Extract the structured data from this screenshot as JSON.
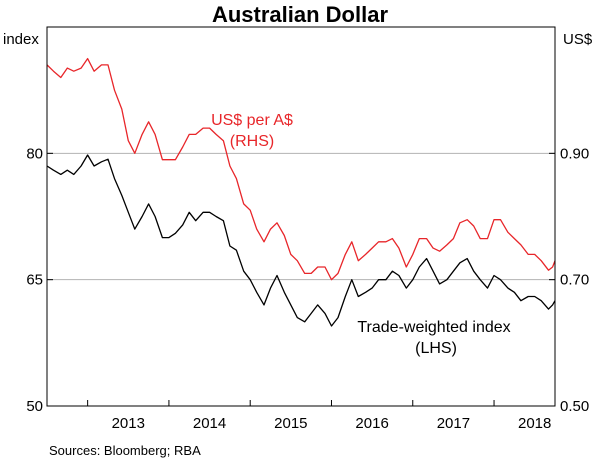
{
  "chart_data": {
    "type": "line",
    "title": "Australian Dollar",
    "left_axis": {
      "unit": "index",
      "ticks": [
        50,
        65,
        80
      ],
      "range": [
        50,
        95
      ]
    },
    "right_axis": {
      "unit": "US$",
      "ticks": [
        "0.50",
        "0.70",
        "0.90"
      ],
      "tick_values": [
        0.5,
        0.7,
        0.9
      ],
      "range": [
        0.5,
        1.1
      ]
    },
    "x_axis": {
      "ticks": [
        "2013",
        "2014",
        "2015",
        "2016",
        "2017",
        "2018"
      ],
      "range": [
        2012.5,
        2018.75
      ]
    },
    "gridlines": [
      65,
      80
    ],
    "series": [
      {
        "name": "US$ per A$",
        "axis_note": "(RHS)",
        "axis": "right",
        "color": "#e8262a",
        "points": [
          [
            2012.5,
            1.04
          ],
          [
            2012.58,
            1.03
          ],
          [
            2012.67,
            1.02
          ],
          [
            2012.75,
            1.035
          ],
          [
            2012.83,
            1.03
          ],
          [
            2012.92,
            1.035
          ],
          [
            2013.0,
            1.05
          ],
          [
            2013.08,
            1.03
          ],
          [
            2013.17,
            1.04
          ],
          [
            2013.25,
            1.04
          ],
          [
            2013.33,
            1.0
          ],
          [
            2013.42,
            0.97
          ],
          [
            2013.5,
            0.92
          ],
          [
            2013.58,
            0.9
          ],
          [
            2013.67,
            0.93
          ],
          [
            2013.75,
            0.95
          ],
          [
            2013.83,
            0.93
          ],
          [
            2013.92,
            0.89
          ],
          [
            2014.0,
            0.89
          ],
          [
            2014.08,
            0.89
          ],
          [
            2014.17,
            0.91
          ],
          [
            2014.25,
            0.93
          ],
          [
            2014.33,
            0.93
          ],
          [
            2014.42,
            0.94
          ],
          [
            2014.5,
            0.94
          ],
          [
            2014.58,
            0.93
          ],
          [
            2014.67,
            0.92
          ],
          [
            2014.75,
            0.88
          ],
          [
            2014.83,
            0.86
          ],
          [
            2014.92,
            0.82
          ],
          [
            2015.0,
            0.81
          ],
          [
            2015.08,
            0.78
          ],
          [
            2015.17,
            0.76
          ],
          [
            2015.25,
            0.78
          ],
          [
            2015.33,
            0.79
          ],
          [
            2015.42,
            0.77
          ],
          [
            2015.5,
            0.74
          ],
          [
            2015.58,
            0.73
          ],
          [
            2015.67,
            0.71
          ],
          [
            2015.75,
            0.71
          ],
          [
            2015.83,
            0.72
          ],
          [
            2015.92,
            0.72
          ],
          [
            2016.0,
            0.7
          ],
          [
            2016.08,
            0.71
          ],
          [
            2016.17,
            0.74
          ],
          [
            2016.25,
            0.76
          ],
          [
            2016.33,
            0.73
          ],
          [
            2016.42,
            0.74
          ],
          [
            2016.5,
            0.75
          ],
          [
            2016.58,
            0.76
          ],
          [
            2016.67,
            0.76
          ],
          [
            2016.75,
            0.765
          ],
          [
            2016.83,
            0.75
          ],
          [
            2016.92,
            0.72
          ],
          [
            2017.0,
            0.74
          ],
          [
            2017.08,
            0.765
          ],
          [
            2017.17,
            0.765
          ],
          [
            2017.25,
            0.75
          ],
          [
            2017.33,
            0.745
          ],
          [
            2017.42,
            0.755
          ],
          [
            2017.5,
            0.765
          ],
          [
            2017.58,
            0.79
          ],
          [
            2017.67,
            0.795
          ],
          [
            2017.75,
            0.785
          ],
          [
            2017.83,
            0.765
          ],
          [
            2017.92,
            0.765
          ],
          [
            2018.0,
            0.795
          ],
          [
            2018.08,
            0.795
          ],
          [
            2018.17,
            0.775
          ],
          [
            2018.25,
            0.765
          ],
          [
            2018.33,
            0.755
          ],
          [
            2018.42,
            0.74
          ],
          [
            2018.5,
            0.74
          ],
          [
            2018.58,
            0.73
          ],
          [
            2018.67,
            0.715
          ],
          [
            2018.72,
            0.72
          ],
          [
            2018.75,
            0.73
          ]
        ]
      },
      {
        "name": "Trade-weighted index",
        "axis_note": "(LHS)",
        "axis": "left",
        "color": "#000000",
        "points": [
          [
            2012.5,
            78.5
          ],
          [
            2012.58,
            78
          ],
          [
            2012.67,
            77.5
          ],
          [
            2012.75,
            78
          ],
          [
            2012.83,
            77.5
          ],
          [
            2012.92,
            78.5
          ],
          [
            2013.0,
            79.8
          ],
          [
            2013.08,
            78.5
          ],
          [
            2013.17,
            79
          ],
          [
            2013.25,
            79.3
          ],
          [
            2013.33,
            77
          ],
          [
            2013.42,
            75
          ],
          [
            2013.5,
            73
          ],
          [
            2013.58,
            71
          ],
          [
            2013.67,
            72.5
          ],
          [
            2013.75,
            74
          ],
          [
            2013.83,
            72.5
          ],
          [
            2013.92,
            70
          ],
          [
            2014.0,
            70
          ],
          [
            2014.08,
            70.5
          ],
          [
            2014.17,
            71.5
          ],
          [
            2014.25,
            73
          ],
          [
            2014.33,
            72
          ],
          [
            2014.42,
            73
          ],
          [
            2014.5,
            73
          ],
          [
            2014.58,
            72.5
          ],
          [
            2014.67,
            72
          ],
          [
            2014.75,
            69
          ],
          [
            2014.83,
            68.5
          ],
          [
            2014.92,
            66
          ],
          [
            2015.0,
            65
          ],
          [
            2015.08,
            63.5
          ],
          [
            2015.17,
            62
          ],
          [
            2015.25,
            64
          ],
          [
            2015.33,
            65.5
          ],
          [
            2015.42,
            63.5
          ],
          [
            2015.5,
            62
          ],
          [
            2015.58,
            60.5
          ],
          [
            2015.67,
            60
          ],
          [
            2015.75,
            61
          ],
          [
            2015.83,
            62
          ],
          [
            2015.92,
            61
          ],
          [
            2016.0,
            59.5
          ],
          [
            2016.08,
            60.5
          ],
          [
            2016.17,
            63
          ],
          [
            2016.25,
            65
          ],
          [
            2016.33,
            63
          ],
          [
            2016.42,
            63.5
          ],
          [
            2016.5,
            64
          ],
          [
            2016.58,
            65
          ],
          [
            2016.67,
            65
          ],
          [
            2016.75,
            66
          ],
          [
            2016.83,
            65.5
          ],
          [
            2016.92,
            64
          ],
          [
            2017.0,
            65
          ],
          [
            2017.08,
            66.5
          ],
          [
            2017.17,
            67.5
          ],
          [
            2017.25,
            66
          ],
          [
            2017.33,
            64.5
          ],
          [
            2017.42,
            65
          ],
          [
            2017.5,
            66
          ],
          [
            2017.58,
            67
          ],
          [
            2017.67,
            67.5
          ],
          [
            2017.75,
            66
          ],
          [
            2017.83,
            65
          ],
          [
            2017.92,
            64
          ],
          [
            2018.0,
            65.5
          ],
          [
            2018.08,
            65
          ],
          [
            2018.17,
            64
          ],
          [
            2018.25,
            63.5
          ],
          [
            2018.33,
            62.5
          ],
          [
            2018.42,
            63
          ],
          [
            2018.5,
            63
          ],
          [
            2018.58,
            62.5
          ],
          [
            2018.67,
            61.5
          ],
          [
            2018.72,
            62
          ],
          [
            2018.75,
            62.5
          ]
        ]
      }
    ],
    "source": "Sources: Bloomberg; RBA"
  }
}
